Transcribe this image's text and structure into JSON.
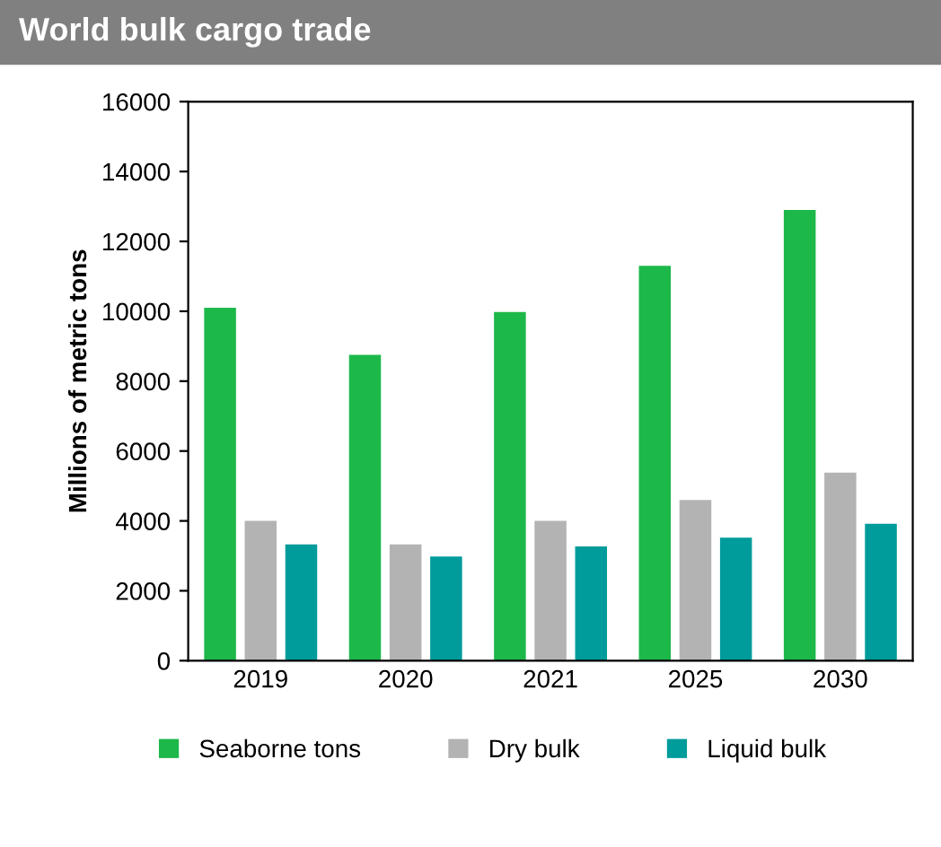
{
  "chart_data": {
    "type": "bar",
    "title": "World bulk cargo trade",
    "ylabel": "Millions of metric tons",
    "categories": [
      "2019",
      "2020",
      "2021",
      "2025",
      "2030"
    ],
    "series": [
      {
        "name": "Seaborne tons",
        "color": "#1db84a",
        "values": [
          10100,
          8750,
          9980,
          11300,
          12900
        ]
      },
      {
        "name": "Dry bulk",
        "color": "#b3b3b3",
        "values": [
          4000,
          3330,
          4000,
          4600,
          5380
        ]
      },
      {
        "name": "Liquid bulk",
        "color": "#009b9b",
        "values": [
          3330,
          2980,
          3270,
          3520,
          3920
        ]
      }
    ],
    "ylim": [
      0,
      16000
    ],
    "yticks": [
      0,
      2000,
      4000,
      6000,
      8000,
      10000,
      12000,
      14000,
      16000
    ],
    "grid": false,
    "legend": "bottom"
  }
}
